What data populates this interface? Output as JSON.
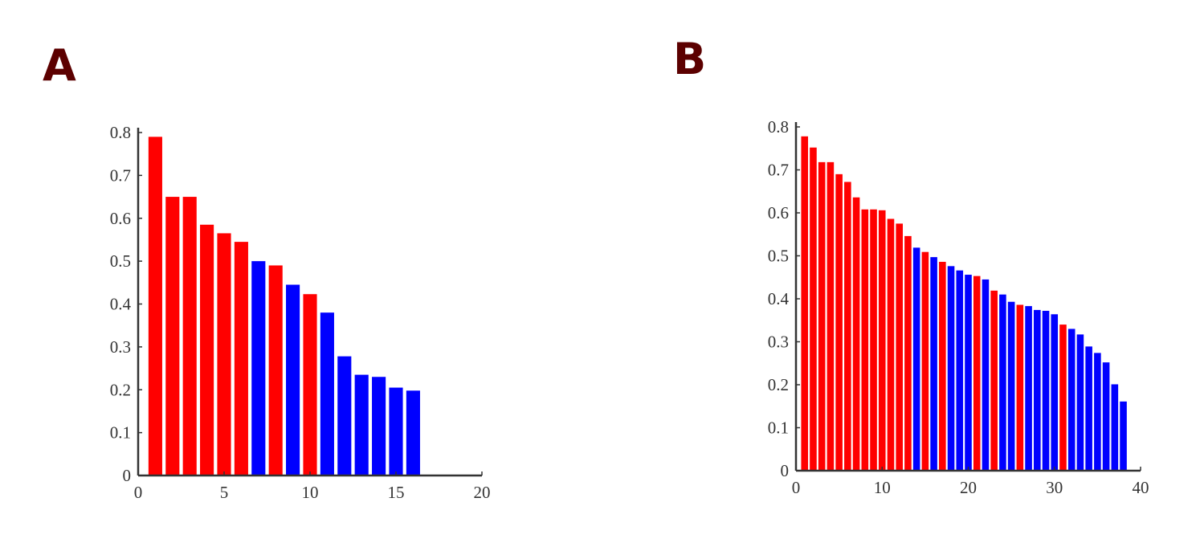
{
  "panels": [
    {
      "label": "A"
    },
    {
      "label": "B"
    }
  ],
  "colors": {
    "red": "#ff0000",
    "blue": "#0000ff",
    "axis": "#333333",
    "panel_label": "#5c0000"
  },
  "chart_data": [
    {
      "type": "bar",
      "panel": "A",
      "title": "",
      "xlabel": "",
      "ylabel": "",
      "xlim": [
        0,
        20
      ],
      "ylim": [
        0,
        0.8
      ],
      "xticks": [
        0,
        5,
        10,
        15,
        20
      ],
      "yticks": [
        0,
        0.1,
        0.2,
        0.3,
        0.4,
        0.5,
        0.6,
        0.7,
        0.8
      ],
      "x": [
        1,
        2,
        3,
        4,
        5,
        6,
        7,
        8,
        9,
        10,
        11,
        12,
        13,
        14,
        15,
        16
      ],
      "values": [
        0.79,
        0.65,
        0.65,
        0.585,
        0.565,
        0.545,
        0.5,
        0.49,
        0.445,
        0.423,
        0.38,
        0.278,
        0.235,
        0.23,
        0.205,
        0.198
      ],
      "bar_colors": [
        "red",
        "red",
        "red",
        "red",
        "red",
        "red",
        "blue",
        "red",
        "blue",
        "red",
        "blue",
        "blue",
        "blue",
        "blue",
        "blue",
        "blue"
      ],
      "grid": false
    },
    {
      "type": "bar",
      "panel": "B",
      "title": "",
      "xlabel": "",
      "ylabel": "",
      "xlim": [
        0,
        40
      ],
      "ylim": [
        0,
        0.8
      ],
      "xticks": [
        0,
        10,
        20,
        30,
        40
      ],
      "yticks": [
        0,
        0.1,
        0.2,
        0.3,
        0.4,
        0.5,
        0.6,
        0.7,
        0.8
      ],
      "x": [
        1,
        2,
        3,
        4,
        5,
        6,
        7,
        8,
        9,
        10,
        11,
        12,
        13,
        14,
        15,
        16,
        17,
        18,
        19,
        20,
        21,
        22,
        23,
        24,
        25,
        26,
        27,
        28,
        29,
        30,
        31,
        32,
        33,
        34,
        35,
        36,
        37,
        38
      ],
      "values": [
        0.778,
        0.752,
        0.718,
        0.718,
        0.69,
        0.672,
        0.636,
        0.608,
        0.608,
        0.606,
        0.586,
        0.575,
        0.546,
        0.519,
        0.509,
        0.497,
        0.486,
        0.476,
        0.466,
        0.456,
        0.453,
        0.445,
        0.419,
        0.41,
        0.393,
        0.386,
        0.383,
        0.374,
        0.372,
        0.364,
        0.34,
        0.33,
        0.317,
        0.289,
        0.274,
        0.252,
        0.201,
        0.161
      ],
      "bar_colors": [
        "red",
        "red",
        "red",
        "red",
        "red",
        "red",
        "red",
        "red",
        "red",
        "red",
        "red",
        "red",
        "red",
        "blue",
        "red",
        "blue",
        "red",
        "blue",
        "blue",
        "blue",
        "red",
        "blue",
        "red",
        "blue",
        "blue",
        "red",
        "blue",
        "blue",
        "blue",
        "blue",
        "red",
        "blue",
        "blue",
        "blue",
        "blue",
        "blue",
        "blue",
        "blue"
      ],
      "grid": false
    }
  ]
}
